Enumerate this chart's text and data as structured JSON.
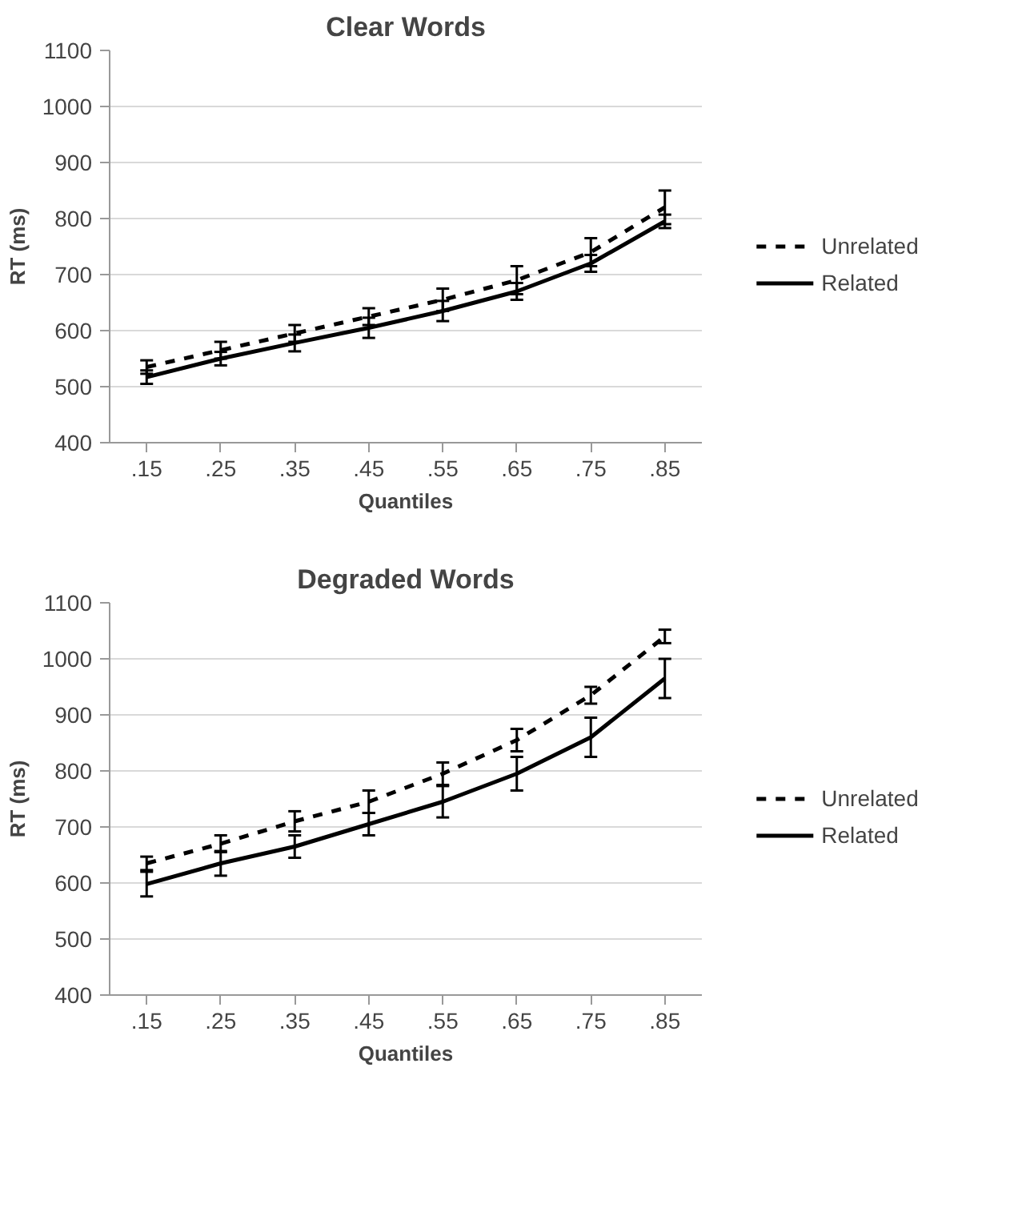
{
  "chart_data": [
    {
      "type": "line",
      "title": "Clear Words",
      "xlabel": "Quantiles",
      "ylabel": "RT (ms)",
      "categories": [
        ".15",
        ".25",
        ".35",
        ".45",
        ".55",
        ".65",
        ".75",
        ".85"
      ],
      "ylim": [
        400,
        1100
      ],
      "yticks": [
        400,
        500,
        600,
        700,
        800,
        900,
        1000,
        1100
      ],
      "grid": "y",
      "legend": "right",
      "marker": "none",
      "series": [
        {
          "name": "Unrelated",
          "color": "#000000",
          "line_style": "dashed",
          "values": [
            535,
            565,
            595,
            625,
            655,
            690,
            740,
            820
          ],
          "errors": [
            12,
            15,
            15,
            15,
            20,
            25,
            25,
            30
          ]
        },
        {
          "name": "Related",
          "color": "#000000",
          "line_style": "solid",
          "values": [
            517,
            550,
            578,
            605,
            635,
            670,
            720,
            795
          ],
          "errors": [
            12,
            12,
            15,
            18,
            18,
            15,
            15,
            12
          ]
        }
      ]
    },
    {
      "type": "line",
      "title": "Degraded Words",
      "xlabel": "Quantiles",
      "ylabel": "RT (ms)",
      "categories": [
        ".15",
        ".25",
        ".35",
        ".45",
        ".55",
        ".65",
        ".75",
        ".85"
      ],
      "ylim": [
        400,
        1100
      ],
      "yticks": [
        400,
        500,
        600,
        700,
        800,
        900,
        1000,
        1100
      ],
      "grid": "y",
      "legend": "right",
      "marker": "none",
      "series": [
        {
          "name": "Unrelated",
          "color": "#000000",
          "line_style": "dashed",
          "values": [
            635,
            670,
            710,
            745,
            795,
            855,
            935,
            1040
          ],
          "errors": [
            12,
            15,
            18,
            20,
            20,
            20,
            15,
            12
          ]
        },
        {
          "name": "Related",
          "color": "#000000",
          "line_style": "solid",
          "values": [
            598,
            635,
            665,
            705,
            745,
            795,
            860,
            965
          ],
          "errors": [
            22,
            22,
            20,
            20,
            28,
            30,
            35,
            35
          ]
        }
      ]
    }
  ]
}
